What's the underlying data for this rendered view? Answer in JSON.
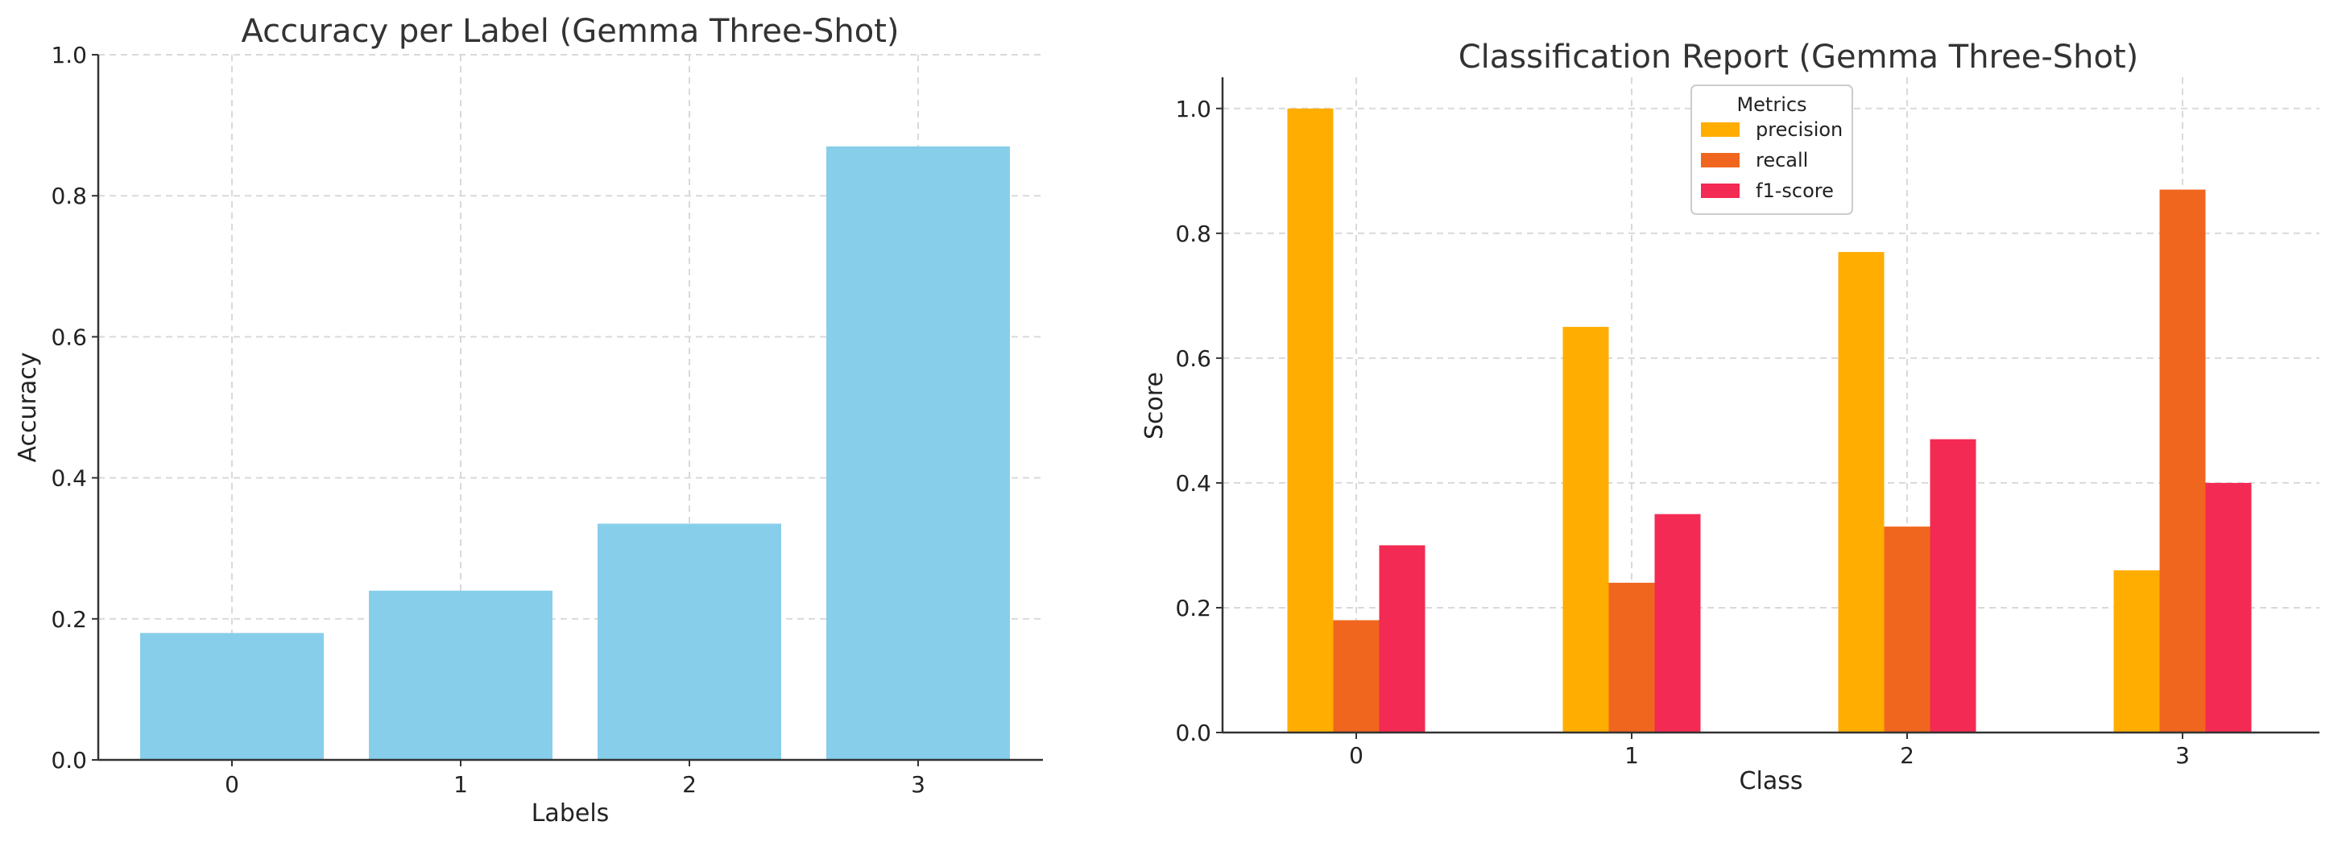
{
  "colors": {
    "accuracy_bar": "#87ceeb",
    "precision": "#ffad01",
    "recall": "#f0661e",
    "f1_score": "#f32a53"
  },
  "chart_data": [
    {
      "type": "bar",
      "title": "Accuracy per Label (Gemma Three-Shot)",
      "xlabel": "Labels",
      "ylabel": "Accuracy",
      "categories": [
        "0",
        "1",
        "2",
        "3"
      ],
      "values": [
        0.18,
        0.24,
        0.335,
        0.87
      ],
      "ylim": [
        0,
        1.0
      ],
      "yticks": [
        "0.0",
        "0.2",
        "0.4",
        "0.6",
        "0.8",
        "1.0"
      ],
      "grid": true
    },
    {
      "type": "bar",
      "title": "Classification Report (Gemma Three-Shot)",
      "xlabel": "Class",
      "ylabel": "Score",
      "categories": [
        "0",
        "1",
        "2",
        "3"
      ],
      "series": [
        {
          "name": "precision",
          "values": [
            1.0,
            0.65,
            0.77,
            0.26
          ]
        },
        {
          "name": "recall",
          "values": [
            0.18,
            0.24,
            0.33,
            0.87
          ]
        },
        {
          "name": "f1-score",
          "values": [
            0.3,
            0.35,
            0.47,
            0.4
          ]
        }
      ],
      "ylim": [
        0,
        1.05
      ],
      "yticks": [
        "0.0",
        "0.2",
        "0.4",
        "0.6",
        "0.8",
        "1.0"
      ],
      "grid": true,
      "legend": {
        "title": "Metrics",
        "position": "top-center"
      }
    }
  ]
}
